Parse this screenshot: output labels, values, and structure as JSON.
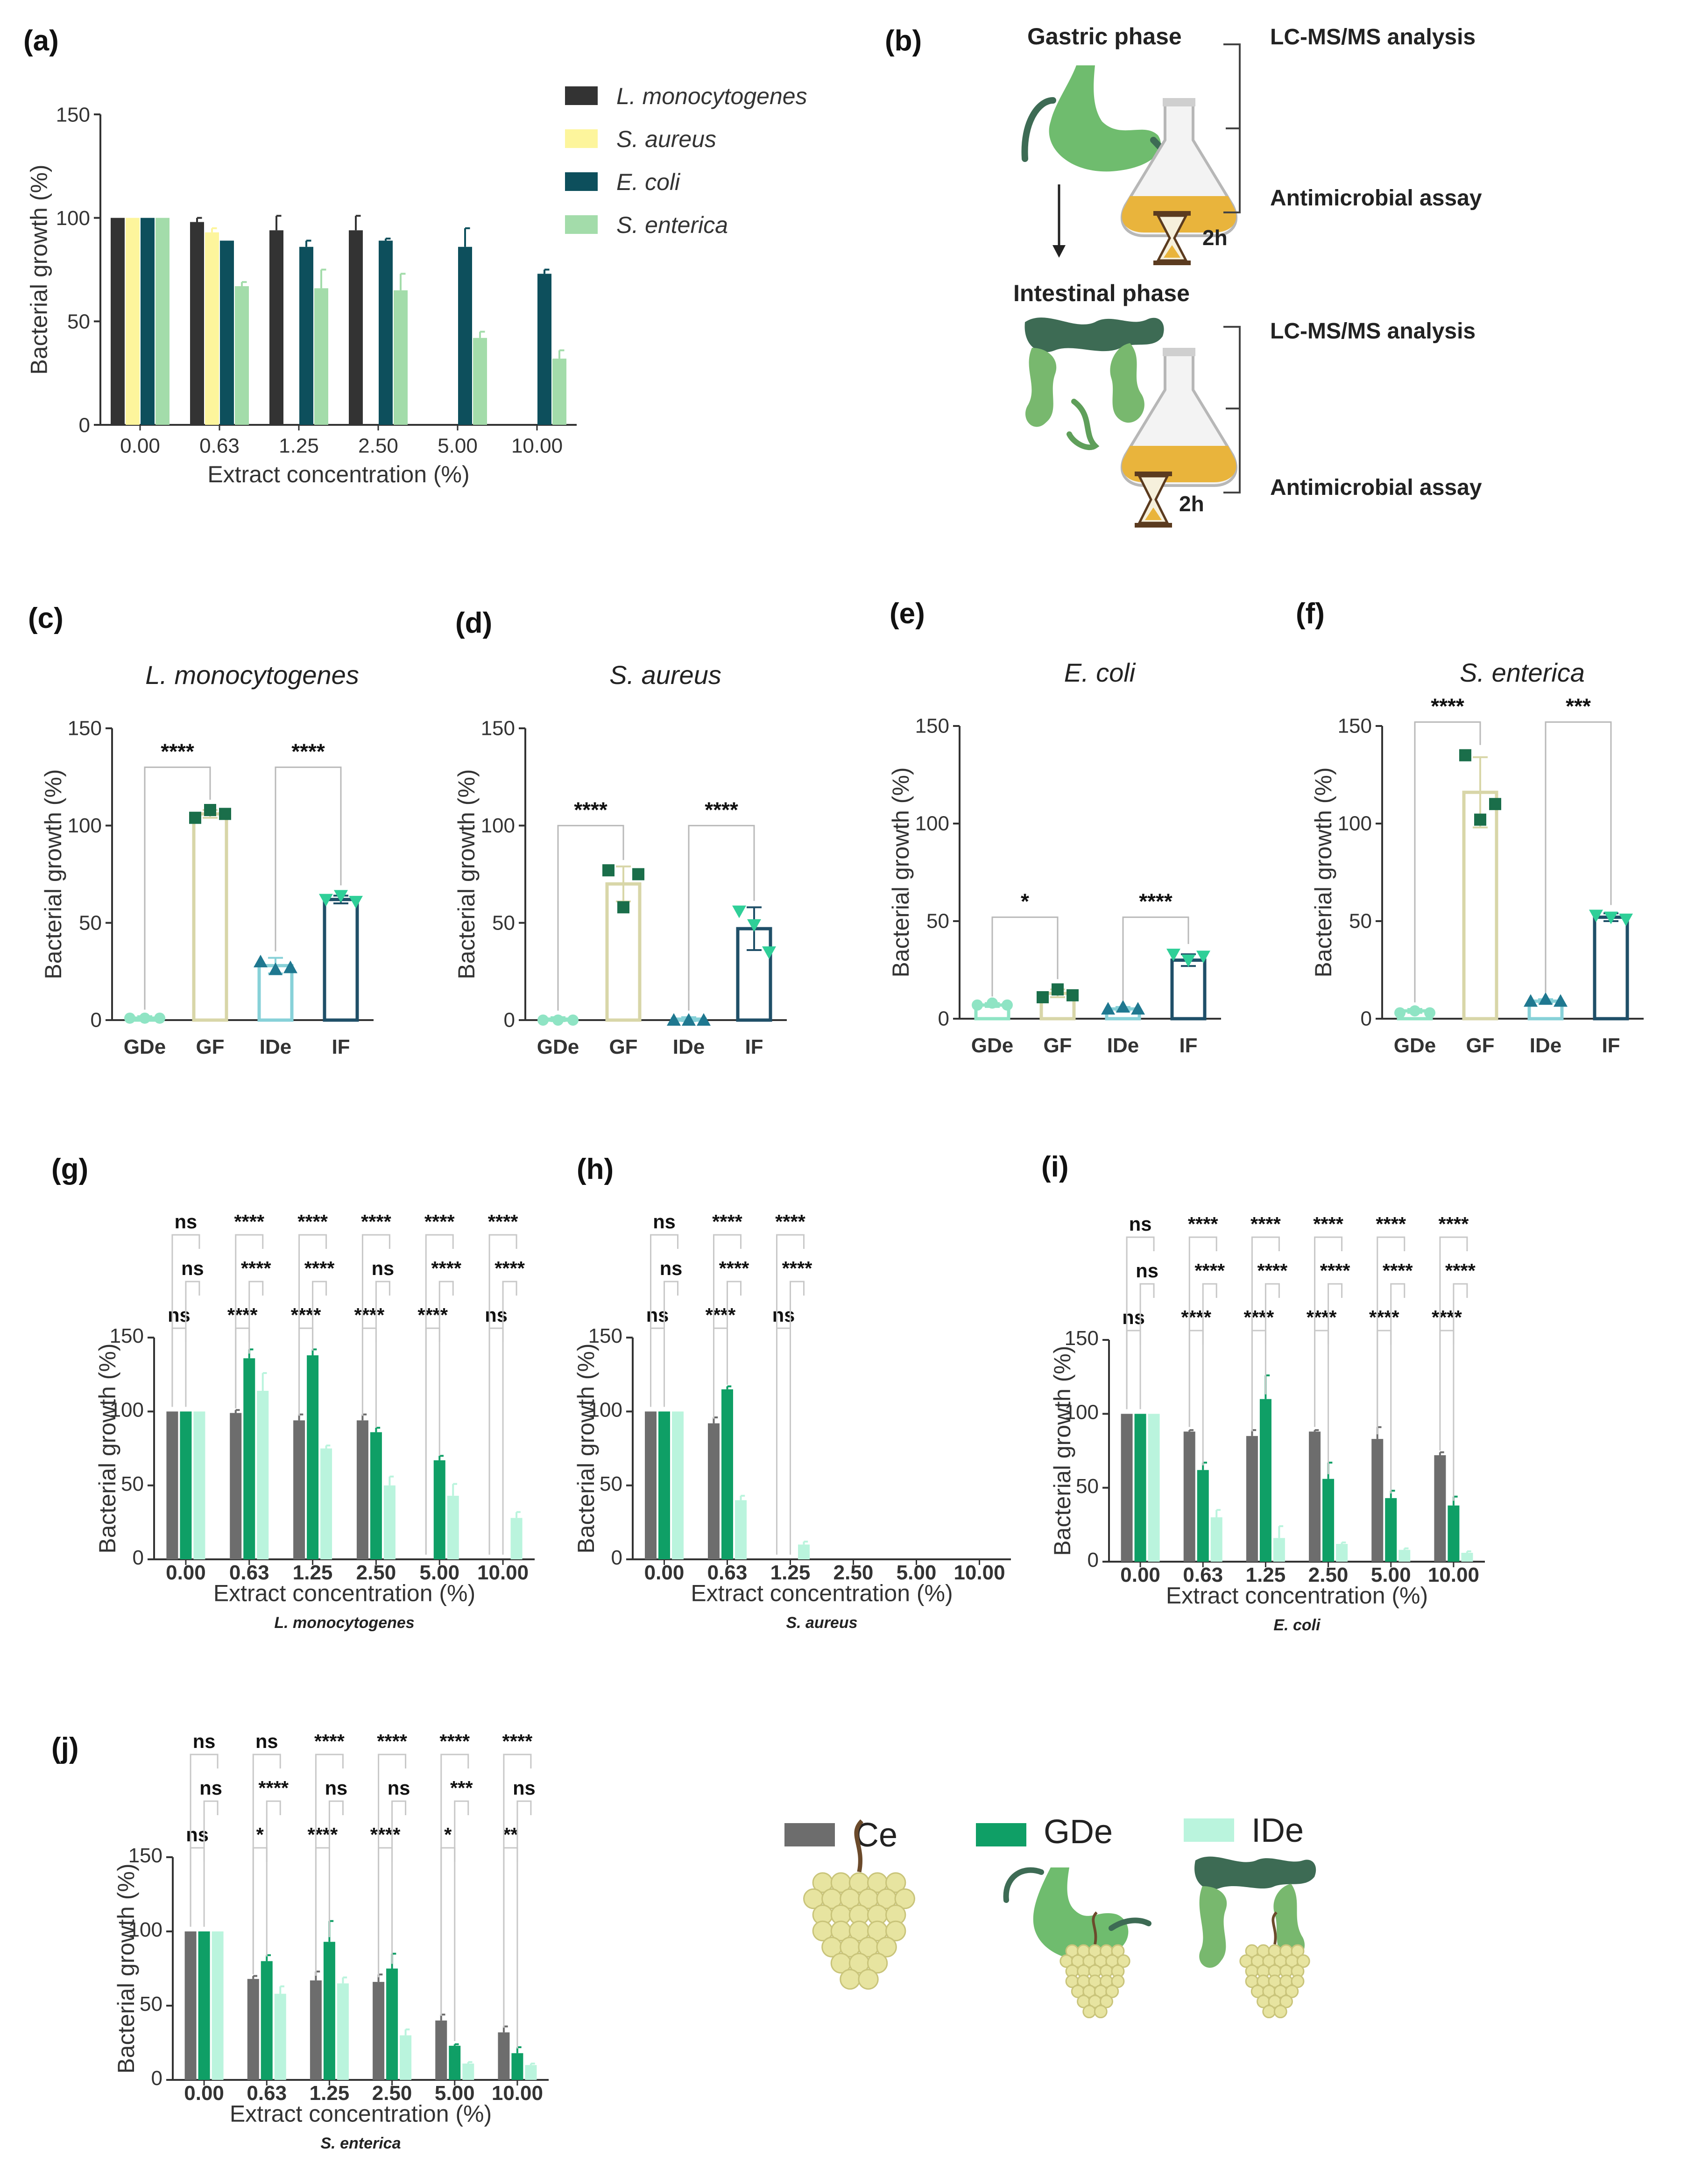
{
  "panel_labels": [
    "(a)",
    "(b)",
    "(c)",
    "(d)",
    "(e)",
    "(f)",
    "(g)",
    "(h)",
    "(i)",
    "(j)"
  ],
  "colors": {
    "lmono": "#333333",
    "saureus": "#fdf59c",
    "ecoli": "#0d4f5c",
    "senterica": "#a3dcaa",
    "gde_bar": "#8fe4c4",
    "gf_bar": "#d8d6a8",
    "ide_bar": "#87d1d8",
    "if_bar": "#1f4f68",
    "gde_pt": "#8fe4c4",
    "gf_pt": "#1a6e4a",
    "ide_pt": "#1f7890",
    "if_pt": "#2fcf98",
    "ce": "#6d6d6d",
    "gde": "#0f9f66",
    "ide": "#baf4dd",
    "stomach": "#6fbc6e",
    "colon_dark": "#3d6b54",
    "colon_light": "#78b86e",
    "grape": "#e7e4a0",
    "liquid": "#e9b43c"
  },
  "panel_b": {
    "gastric_phase": "Gastric phase",
    "intestinal_phase": "Intestinal phase",
    "lcms_1": "LC-MS/MS analysis",
    "assay_1": "Antimicrobial assay",
    "lcms_2": "LC-MS/MS analysis",
    "assay_2": "Antimicrobial assay",
    "time_1": "2h",
    "time_2": "2h"
  },
  "legend_bottom": {
    "ce": "Ce",
    "gde": "GDe",
    "ide": "IDe"
  },
  "chart_data": [
    {
      "id": "a",
      "type": "bar",
      "title": "",
      "categories": [
        "0.00",
        "0.63",
        "1.25",
        "2.50",
        "5.00",
        "10.00"
      ],
      "xlabel": "Extract concentration (%)",
      "ylabel": "Bacterial growth (%)",
      "ylim": [
        0,
        150
      ],
      "yticks": [
        0,
        50,
        100,
        150
      ],
      "series": [
        {
          "name": "L. monocytogenes",
          "color_key": "lmono",
          "values": [
            100,
            98,
            94,
            94,
            null,
            null
          ],
          "err": [
            0,
            2,
            7,
            7,
            0,
            0
          ]
        },
        {
          "name": "S. aureus",
          "color_key": "saureus",
          "values": [
            100,
            93,
            null,
            null,
            null,
            null
          ],
          "err": [
            0,
            2,
            0,
            0,
            0,
            0
          ]
        },
        {
          "name": "E. coli",
          "color_key": "ecoli",
          "values": [
            100,
            89,
            86,
            89,
            86,
            73
          ],
          "err": [
            0,
            0,
            3,
            1,
            9,
            2
          ]
        },
        {
          "name": "S. enterica",
          "color_key": "senterica",
          "values": [
            100,
            67,
            66,
            65,
            42,
            32
          ],
          "err": [
            0,
            2,
            9,
            8,
            3,
            4
          ]
        }
      ]
    },
    {
      "id": "c",
      "type": "bar",
      "title": "L. monocytogenes",
      "categories": [
        "GDe",
        "GF",
        "IDe",
        "IF"
      ],
      "ylabel": "Bacterial growth (%)",
      "ylim": [
        0,
        150
      ],
      "yticks": [
        0,
        50,
        100,
        150
      ],
      "values": [
        1,
        106,
        28,
        62
      ],
      "err": [
        1,
        2,
        4,
        2
      ],
      "points": [
        [
          1,
          1,
          1
        ],
        [
          104,
          108,
          106
        ],
        [
          30,
          26,
          27
        ],
        [
          62,
          64,
          61
        ]
      ],
      "markers": [
        "circle",
        "square",
        "triangle",
        "down"
      ],
      "brackets": [
        {
          "from": 0,
          "to": 1,
          "label": "****",
          "y": 130
        },
        {
          "from": 2,
          "to": 3,
          "label": "****",
          "y": 130
        }
      ]
    },
    {
      "id": "d",
      "type": "bar",
      "title": "S. aureus",
      "categories": [
        "GDe",
        "GF",
        "IDe",
        "IF"
      ],
      "ylabel": "Bacterial growth (%)",
      "ylim": [
        0,
        150
      ],
      "yticks": [
        0,
        50,
        100,
        150
      ],
      "values": [
        0.5,
        70,
        0.5,
        47
      ],
      "err": [
        1,
        9,
        1,
        11
      ],
      "points": [
        [
          0,
          0,
          0
        ],
        [
          77,
          58,
          75
        ],
        [
          0,
          0,
          0
        ],
        [
          56,
          49,
          35
        ]
      ],
      "markers": [
        "circle",
        "square",
        "triangle",
        "down"
      ],
      "brackets": [
        {
          "from": 0,
          "to": 1,
          "label": "****",
          "y": 100
        },
        {
          "from": 2,
          "to": 3,
          "label": "****",
          "y": 100
        }
      ]
    },
    {
      "id": "e",
      "type": "bar",
      "title": "E. coli",
      "categories": [
        "GDe",
        "GF",
        "IDe",
        "IF"
      ],
      "ylabel": "Bacterial growth (%)",
      "ylim": [
        0,
        150
      ],
      "yticks": [
        0,
        50,
        100,
        150
      ],
      "values": [
        7,
        13,
        5,
        30
      ],
      "err": [
        1,
        2,
        1,
        3
      ],
      "points": [
        [
          7,
          8,
          7
        ],
        [
          11,
          15,
          12
        ],
        [
          5,
          6,
          5
        ],
        [
          33,
          30,
          32
        ]
      ],
      "markers": [
        "circle",
        "square",
        "triangle",
        "down"
      ],
      "brackets": [
        {
          "from": 0,
          "to": 1,
          "label": "*",
          "y": 52
        },
        {
          "from": 2,
          "to": 3,
          "label": "****",
          "y": 52
        }
      ]
    },
    {
      "id": "f",
      "type": "bar",
      "title": "S. enterica",
      "categories": [
        "GDe",
        "GF",
        "IDe",
        "IF"
      ],
      "ylabel": "Bacterial growth (%)",
      "ylim": [
        0,
        150
      ],
      "yticks": [
        0,
        50,
        100,
        150
      ],
      "values": [
        4,
        116,
        9,
        52
      ],
      "err": [
        1,
        18,
        1,
        2
      ],
      "points": [
        [
          3,
          4,
          3
        ],
        [
          135,
          102,
          110
        ],
        [
          9,
          10,
          9
        ],
        [
          53,
          52,
          51
        ]
      ],
      "markers": [
        "circle",
        "square",
        "triangle",
        "down"
      ],
      "brackets": [
        {
          "from": 0,
          "to": 1,
          "label": "****",
          "y": 152
        },
        {
          "from": 2,
          "to": 3,
          "label": "***",
          "y": 152
        }
      ]
    },
    {
      "id": "g",
      "type": "bar",
      "title": "",
      "categories": [
        "0.00",
        "0.63",
        "1.25",
        "2.50",
        "5.00",
        "10.00"
      ],
      "xlabel": "Extract concentration (%)",
      "ylabel": "Bacterial growth (%)",
      "subtitle": "L. monocytogenes",
      "ylim": [
        0,
        150
      ],
      "yticks": [
        0,
        50,
        100,
        150
      ],
      "series": [
        {
          "name": "Ce",
          "color_key": "ce",
          "values": [
            100,
            99,
            94,
            94,
            null,
            null
          ],
          "err": [
            0,
            2,
            4,
            4,
            0,
            0
          ]
        },
        {
          "name": "GDe",
          "color_key": "gde",
          "values": [
            100,
            136,
            138,
            86,
            67,
            null
          ],
          "err": [
            0,
            6,
            4,
            3,
            3,
            0
          ]
        },
        {
          "name": "IDe",
          "color_key": "ide",
          "values": [
            100,
            114,
            75,
            50,
            43,
            28
          ],
          "err": [
            0,
            12,
            2,
            6,
            8,
            4
          ]
        }
      ],
      "sig": [
        [
          "ns",
          "ns",
          "ns"
        ],
        [
          "****",
          "****",
          "****"
        ],
        [
          "****",
          "****",
          "****"
        ],
        [
          "****",
          "ns",
          "****"
        ],
        [
          "****",
          "****",
          "****"
        ],
        [
          "ns",
          "****",
          "****"
        ]
      ]
    },
    {
      "id": "h",
      "type": "bar",
      "title": "",
      "categories": [
        "0.00",
        "0.63",
        "1.25",
        "2.50",
        "5.00",
        "10.00"
      ],
      "xlabel": "Extract concentration (%)",
      "ylabel": "Bacterial growth (%)",
      "subtitle": "S. aureus",
      "ylim": [
        0,
        150
      ],
      "yticks": [
        0,
        50,
        100,
        150
      ],
      "series": [
        {
          "name": "Ce",
          "color_key": "ce",
          "values": [
            100,
            92,
            null,
            null,
            null,
            null
          ],
          "err": [
            0,
            4,
            0,
            0,
            0,
            0
          ]
        },
        {
          "name": "GDe",
          "color_key": "gde",
          "values": [
            100,
            115,
            null,
            null,
            null,
            null
          ],
          "err": [
            0,
            2,
            0,
            0,
            0,
            0
          ]
        },
        {
          "name": "IDe",
          "color_key": "ide",
          "values": [
            100,
            40,
            10,
            null,
            null,
            null
          ],
          "err": [
            0,
            3,
            2,
            0,
            0,
            0
          ]
        }
      ],
      "sig": [
        [
          "ns",
          "ns",
          "ns"
        ],
        [
          "****",
          "****",
          "****"
        ],
        [
          "ns",
          "****",
          "****"
        ],
        null,
        null,
        null
      ]
    },
    {
      "id": "i",
      "type": "bar",
      "title": "",
      "categories": [
        "0.00",
        "0.63",
        "1.25",
        "2.50",
        "5.00",
        "10.00"
      ],
      "xlabel": "Extract concentration (%)",
      "ylabel": "Bacterial growth (%)",
      "subtitle": "E. coli",
      "ylim": [
        0,
        150
      ],
      "yticks": [
        0,
        50,
        100,
        150
      ],
      "series": [
        {
          "name": "Ce",
          "color_key": "ce",
          "values": [
            100,
            88,
            85,
            88,
            83,
            72
          ],
          "err": [
            0,
            1,
            4,
            1,
            8,
            2
          ]
        },
        {
          "name": "GDe",
          "color_key": "gde",
          "values": [
            100,
            62,
            110,
            56,
            43,
            38
          ],
          "err": [
            0,
            5,
            16,
            11,
            5,
            6
          ]
        },
        {
          "name": "IDe",
          "color_key": "ide",
          "values": [
            100,
            30,
            16,
            12,
            8,
            6
          ],
          "err": [
            0,
            5,
            8,
            1,
            1,
            1
          ]
        }
      ],
      "sig": [
        [
          "ns",
          "ns",
          "ns"
        ],
        [
          "****",
          "****",
          "****"
        ],
        [
          "****",
          "****",
          "****"
        ],
        [
          "****",
          "****",
          "****"
        ],
        [
          "****",
          "****",
          "****"
        ],
        [
          "****",
          "****",
          "****"
        ]
      ]
    },
    {
      "id": "j",
      "type": "bar",
      "title": "",
      "categories": [
        "0.00",
        "0.63",
        "1.25",
        "2.50",
        "5.00",
        "10.00"
      ],
      "xlabel": "Extract concentration (%)",
      "ylabel": "Bacterial growth (%)",
      "subtitle": "S. enterica",
      "ylim": [
        0,
        150
      ],
      "yticks": [
        0,
        50,
        100,
        150
      ],
      "series": [
        {
          "name": "Ce",
          "color_key": "ce",
          "values": [
            100,
            68,
            67,
            66,
            40,
            32
          ],
          "err": [
            0,
            2,
            6,
            5,
            4,
            4
          ]
        },
        {
          "name": "GDe",
          "color_key": "gde",
          "values": [
            100,
            80,
            93,
            75,
            23,
            18
          ],
          "err": [
            0,
            4,
            14,
            10,
            1,
            4
          ]
        },
        {
          "name": "IDe",
          "color_key": "ide",
          "values": [
            100,
            58,
            65,
            30,
            11,
            10
          ],
          "err": [
            0,
            5,
            4,
            4,
            1,
            1
          ]
        }
      ],
      "sig": [
        [
          "ns",
          "ns",
          "ns"
        ],
        [
          "*",
          "****",
          "ns"
        ],
        [
          "****",
          "ns",
          "****"
        ],
        [
          "****",
          "ns",
          "****"
        ],
        [
          "*",
          "***",
          "****"
        ],
        [
          "**",
          "ns",
          "****"
        ]
      ]
    }
  ]
}
